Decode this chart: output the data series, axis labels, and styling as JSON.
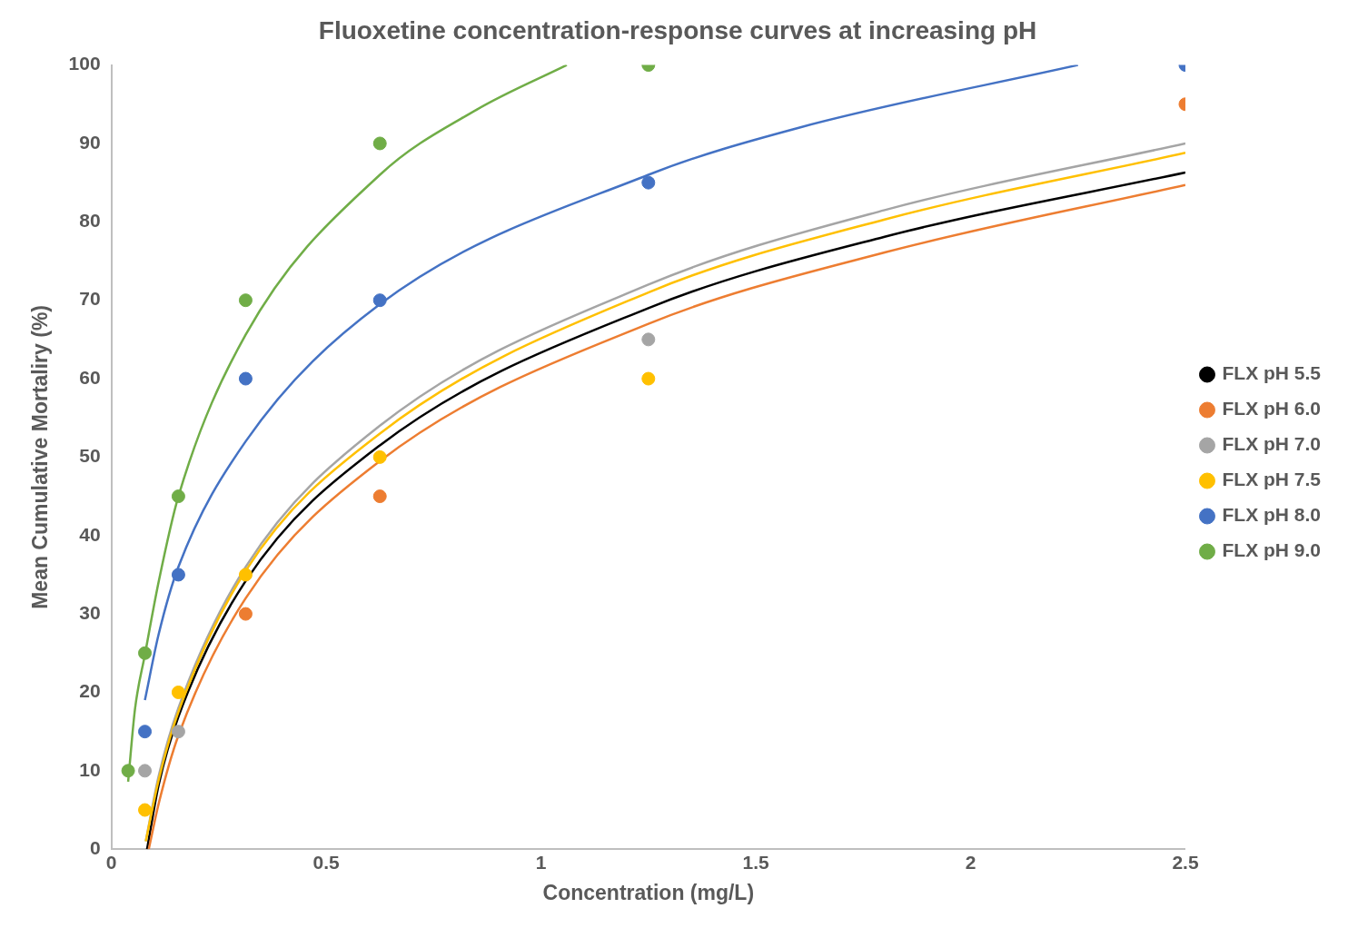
{
  "chart_data": {
    "type": "scatter",
    "title": "Fluoxetine concentration-response curves at increasing pH",
    "xlabel": "Concentration (mg/L)",
    "ylabel": "Mean Cumulative Mortaliry (%)",
    "xlim": [
      0,
      2.5
    ],
    "xticks": [
      0,
      0.5,
      1,
      1.5,
      2,
      2.5
    ],
    "ylim": [
      0,
      100
    ],
    "yticks": [
      0,
      10,
      20,
      30,
      40,
      50,
      60,
      70,
      80,
      90,
      100
    ],
    "grid": false,
    "legend": "right",
    "marker": "circle",
    "series": [
      {
        "name": "FLX pH 5.5",
        "color": "#000000"
      },
      {
        "name": "FLX pH 6.0",
        "color": "#ed7d31",
        "x": [
          0.3125,
          0.625,
          2.5
        ],
        "values": [
          30,
          45,
          95
        ]
      },
      {
        "name": "FLX pH 7.0",
        "color": "#a5a5a5",
        "x": [
          0.078,
          0.156,
          1.25
        ],
        "values": [
          10,
          15,
          65
        ]
      },
      {
        "name": "FLX pH 7.5",
        "color": "#ffc000",
        "x": [
          0.078,
          0.156,
          0.3125,
          0.625,
          1.25
        ],
        "values": [
          5,
          20,
          35,
          50,
          60
        ]
      },
      {
        "name": "FLX pH 8.0",
        "color": "#4472c4",
        "x": [
          0.078,
          0.156,
          0.3125,
          0.625,
          1.25,
          2.5
        ],
        "values": [
          15,
          35,
          60,
          70,
          85,
          100
        ]
      },
      {
        "name": "FLX pH 9.0",
        "color": "#70ad47",
        "x": [
          0.039,
          0.078,
          0.156,
          0.3125,
          0.625,
          1.25
        ],
        "values": [
          10,
          25,
          45,
          70,
          90,
          100
        ]
      },
      {
        "type": "line",
        "color": "#000000",
        "marker": "none",
        "x": [
          0.083,
          0.11,
          0.156,
          0.3125,
          0.625,
          1.25,
          1.8,
          2.5
        ],
        "values": [
          0,
          8.2,
          16.9,
          34.2,
          51.5,
          69,
          78.1,
          86.3
        ]
      },
      {
        "type": "line",
        "color": "#ed7d31",
        "marker": "none",
        "x": [
          0.087,
          0.11,
          0.156,
          0.3125,
          0.625,
          1.25,
          1.8,
          2.5
        ],
        "values": [
          0,
          5.8,
          14.5,
          32,
          49.5,
          67,
          76.1,
          84.7
        ]
      },
      {
        "type": "line",
        "color": "#a5a5a5",
        "marker": "none",
        "x": [
          0.08,
          0.11,
          0.156,
          0.3125,
          0.625,
          1.25,
          1.8,
          2.5
        ],
        "values": [
          1,
          9.3,
          18,
          36,
          54,
          72,
          81.5,
          90
        ]
      },
      {
        "type": "line",
        "color": "#ffc000",
        "marker": "none",
        "x": [
          0.08,
          0.11,
          0.156,
          0.3125,
          0.625,
          1.25,
          1.8,
          2.5
        ],
        "values": [
          1,
          8.8,
          17.5,
          35.5,
          53,
          71,
          80.3,
          88.8
        ]
      },
      {
        "type": "line",
        "color": "#4472c4",
        "marker": "none",
        "x": [
          0.078,
          0.11,
          0.156,
          0.3125,
          0.625,
          1.25,
          1.6,
          2.25
        ],
        "values": [
          19,
          27.4,
          36,
          52,
          69.5,
          86,
          92,
          100
        ]
      },
      {
        "type": "line",
        "color": "#70ad47",
        "marker": "none",
        "x": [
          0.039,
          0.055,
          0.078,
          0.11,
          0.156,
          0.3125,
          0.625,
          0.85,
          1.06
        ],
        "values": [
          8.6,
          17.9,
          24.8,
          34.1,
          45,
          65.6,
          86,
          94.3,
          100
        ]
      }
    ]
  }
}
